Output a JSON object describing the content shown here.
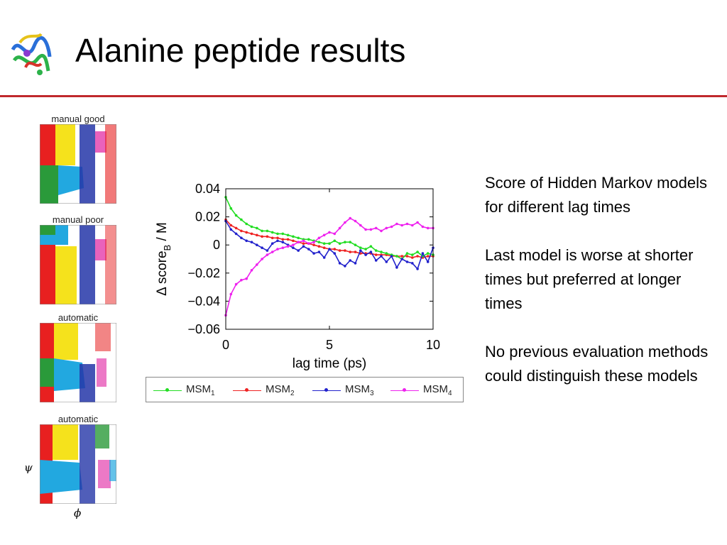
{
  "slide": {
    "title": "Alanine peptide results"
  },
  "panels": [
    {
      "label": "manual good"
    },
    {
      "label": "manual poor"
    },
    {
      "label": "automatic"
    },
    {
      "label": "automatic"
    }
  ],
  "panel_axes": {
    "y": "ψ",
    "x": "ϕ"
  },
  "notes": [
    "Score of Hidden Markov models for different lag times",
    "Last model is worse at shorter times but preferred at longer times",
    "No previous evaluation methods could distinguish these models"
  ],
  "colors": {
    "title_rule": "#c0282c",
    "MSM1": "#22dd22",
    "MSM2": "#ee2222",
    "MSM3": "#2222cc",
    "MSM4": "#ee22ee"
  },
  "chart_data": {
    "type": "line",
    "xlabel": "lag time (ps)",
    "ylabel": "Δ score",
    "ylabel_sub": "B",
    "ylabel_suffix": " / M",
    "xlim": [
      0,
      10
    ],
    "ylim": [
      -0.06,
      0.04
    ],
    "xticks": [
      0,
      5,
      10
    ],
    "yticks": [
      -0.06,
      -0.04,
      -0.02,
      0,
      0.02,
      0.04
    ],
    "ytick_labels": [
      "−0.06",
      "−0.04",
      "−0.02",
      "0",
      "0.02",
      "0.04"
    ],
    "x": [
      0,
      0.25,
      0.5,
      0.75,
      1,
      1.25,
      1.5,
      1.75,
      2,
      2.25,
      2.5,
      2.75,
      3,
      3.25,
      3.5,
      3.75,
      4,
      4.25,
      4.5,
      4.75,
      5,
      5.25,
      5.5,
      5.75,
      6,
      6.25,
      6.5,
      6.75,
      7,
      7.25,
      7.5,
      7.75,
      8,
      8.25,
      8.5,
      8.75,
      9,
      9.25,
      9.5,
      9.75,
      10
    ],
    "series": [
      {
        "name": "MSM",
        "sub": "1",
        "color": "#22dd22",
        "values": [
          0.034,
          0.026,
          0.021,
          0.018,
          0.015,
          0.013,
          0.012,
          0.01,
          0.01,
          0.009,
          0.008,
          0.008,
          0.007,
          0.006,
          0.005,
          0.004,
          0.004,
          0.003,
          0.002,
          0.001,
          0.001,
          0.003,
          0.001,
          0.002,
          0.002,
          0.0,
          -0.002,
          -0.003,
          -0.001,
          -0.004,
          -0.005,
          -0.006,
          -0.007,
          -0.008,
          -0.01,
          -0.006,
          -0.007,
          -0.005,
          -0.008,
          -0.006,
          -0.007
        ]
      },
      {
        "name": "MSM",
        "sub": "2",
        "color": "#ee2222",
        "values": [
          0.018,
          0.014,
          0.012,
          0.01,
          0.009,
          0.008,
          0.007,
          0.006,
          0.006,
          0.005,
          0.005,
          0.004,
          0.004,
          0.003,
          0.002,
          0.001,
          0.001,
          0.0,
          -0.001,
          -0.002,
          -0.003,
          -0.003,
          -0.004,
          -0.004,
          -0.005,
          -0.005,
          -0.006,
          -0.006,
          -0.006,
          -0.007,
          -0.007,
          -0.007,
          -0.008,
          -0.008,
          -0.008,
          -0.008,
          -0.009,
          -0.008,
          -0.009,
          -0.008,
          -0.008
        ]
      },
      {
        "name": "MSM",
        "sub": "3",
        "color": "#2222cc",
        "values": [
          0.017,
          0.011,
          0.008,
          0.005,
          0.003,
          0.002,
          0.0,
          -0.002,
          -0.004,
          0.001,
          0.003,
          0.002,
          0.0,
          -0.002,
          -0.004,
          -0.001,
          -0.003,
          -0.006,
          -0.005,
          -0.009,
          -0.003,
          -0.006,
          -0.013,
          -0.015,
          -0.011,
          -0.013,
          -0.004,
          -0.007,
          -0.005,
          -0.011,
          -0.008,
          -0.012,
          -0.008,
          -0.016,
          -0.01,
          -0.012,
          -0.013,
          -0.017,
          -0.006,
          -0.012,
          -0.002
        ]
      },
      {
        "name": "MSM",
        "sub": "4",
        "color": "#ee22ee",
        "values": [
          -0.05,
          -0.035,
          -0.028,
          -0.025,
          -0.024,
          -0.018,
          -0.014,
          -0.01,
          -0.007,
          -0.005,
          -0.003,
          -0.002,
          -0.001,
          0.0,
          0.002,
          0.003,
          0.001,
          0.002,
          0.005,
          0.007,
          0.009,
          0.008,
          0.012,
          0.016,
          0.019,
          0.017,
          0.014,
          0.011,
          0.011,
          0.012,
          0.01,
          0.012,
          0.013,
          0.015,
          0.014,
          0.015,
          0.014,
          0.016,
          0.013,
          0.012,
          0.012
        ]
      }
    ]
  }
}
